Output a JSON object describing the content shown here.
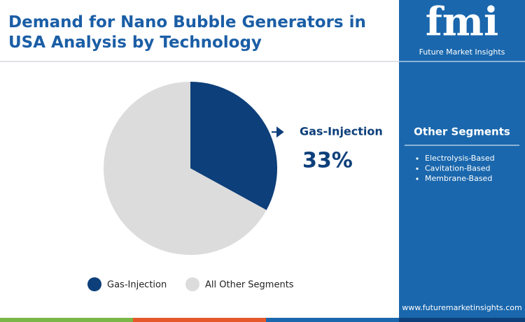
{
  "chart_data": {
    "type": "pie",
    "title": "Demand for Nano Bubble Generators in USA Analysis by Technology",
    "categories": [
      "Gas-Injection",
      "All Other Segments"
    ],
    "values": [
      33,
      67
    ],
    "value_labels": [
      "33%",
      null
    ],
    "colors": [
      "#0d3f7a",
      "#dcdcdc"
    ]
  },
  "sidebar": {
    "brand": "fmi",
    "brand_name": "Future Market Insights",
    "heading": "Other Segments",
    "items": [
      "Electrolysis-Based",
      "Cavitation-Based",
      "Membrane-Based"
    ],
    "website": "www.futuremarketinsights.com"
  }
}
